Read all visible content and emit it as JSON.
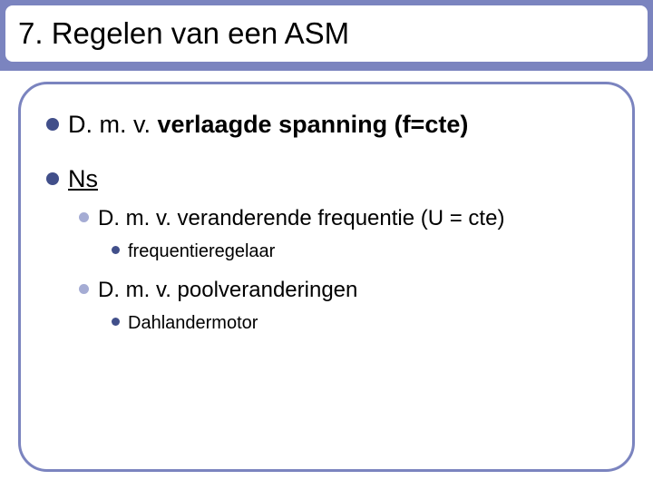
{
  "colors": {
    "accent": "#7b84bf",
    "bullet_l1": "#414f8a",
    "bullet_l2": "#a5acd4",
    "bullet_l3": "#414f8a",
    "text": "#000000",
    "background": "#ffffff"
  },
  "title": "7.  Regelen van een ASM",
  "items": [
    {
      "prefix": "D. m. v. ",
      "bold": "verlaagde spanning (f=cte)",
      "children": []
    },
    {
      "underline": "Ns",
      "children": [
        {
          "text": "D. m. v. veranderende frequentie (U = cte)",
          "children": [
            {
              "text": "frequentieregelaar"
            }
          ]
        },
        {
          "text": "D. m. v. poolveranderingen",
          "children": [
            {
              "text": "Dahlandermotor"
            }
          ]
        }
      ]
    }
  ]
}
